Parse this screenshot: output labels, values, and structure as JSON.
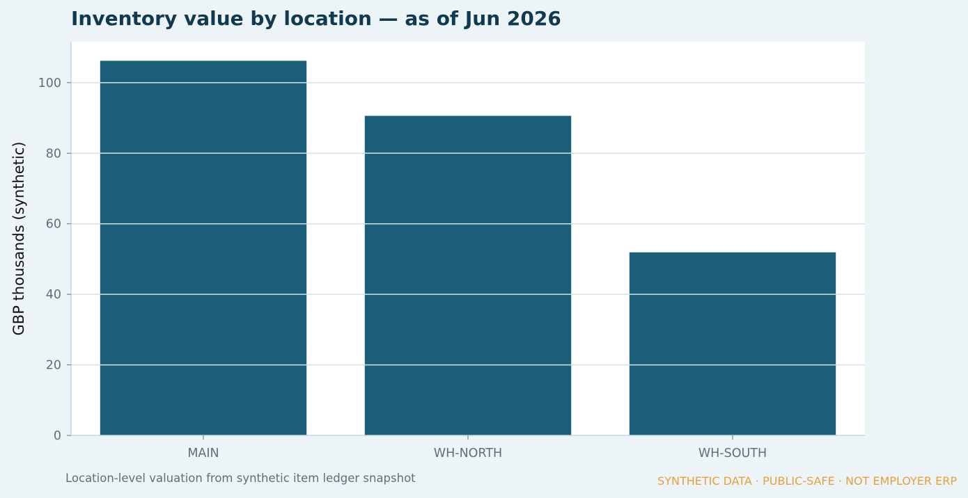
{
  "chart_data": {
    "type": "bar",
    "title": "Inventory value by location — as of Jun 2026",
    "ylabel": "GBP thousands (synthetic)",
    "xlabel": "",
    "categories": [
      "MAIN",
      "WH-NORTH",
      "WH-SOUTH"
    ],
    "values": [
      106.2,
      90.6,
      51.9
    ],
    "ylim": [
      0,
      111.6
    ],
    "yticks": [
      0,
      20,
      40,
      60,
      80,
      100
    ],
    "grid": true,
    "colors": {
      "bar": "#1b5f79",
      "grid": "#d4e2e8",
      "background": "#edf4f7",
      "plot_background": "#ffffff"
    }
  },
  "caption": "Location-level valuation from synthetic item ledger snapshot",
  "badge": "SYNTHETIC DATA · PUBLIC-SAFE · NOT EMPLOYER ERP"
}
